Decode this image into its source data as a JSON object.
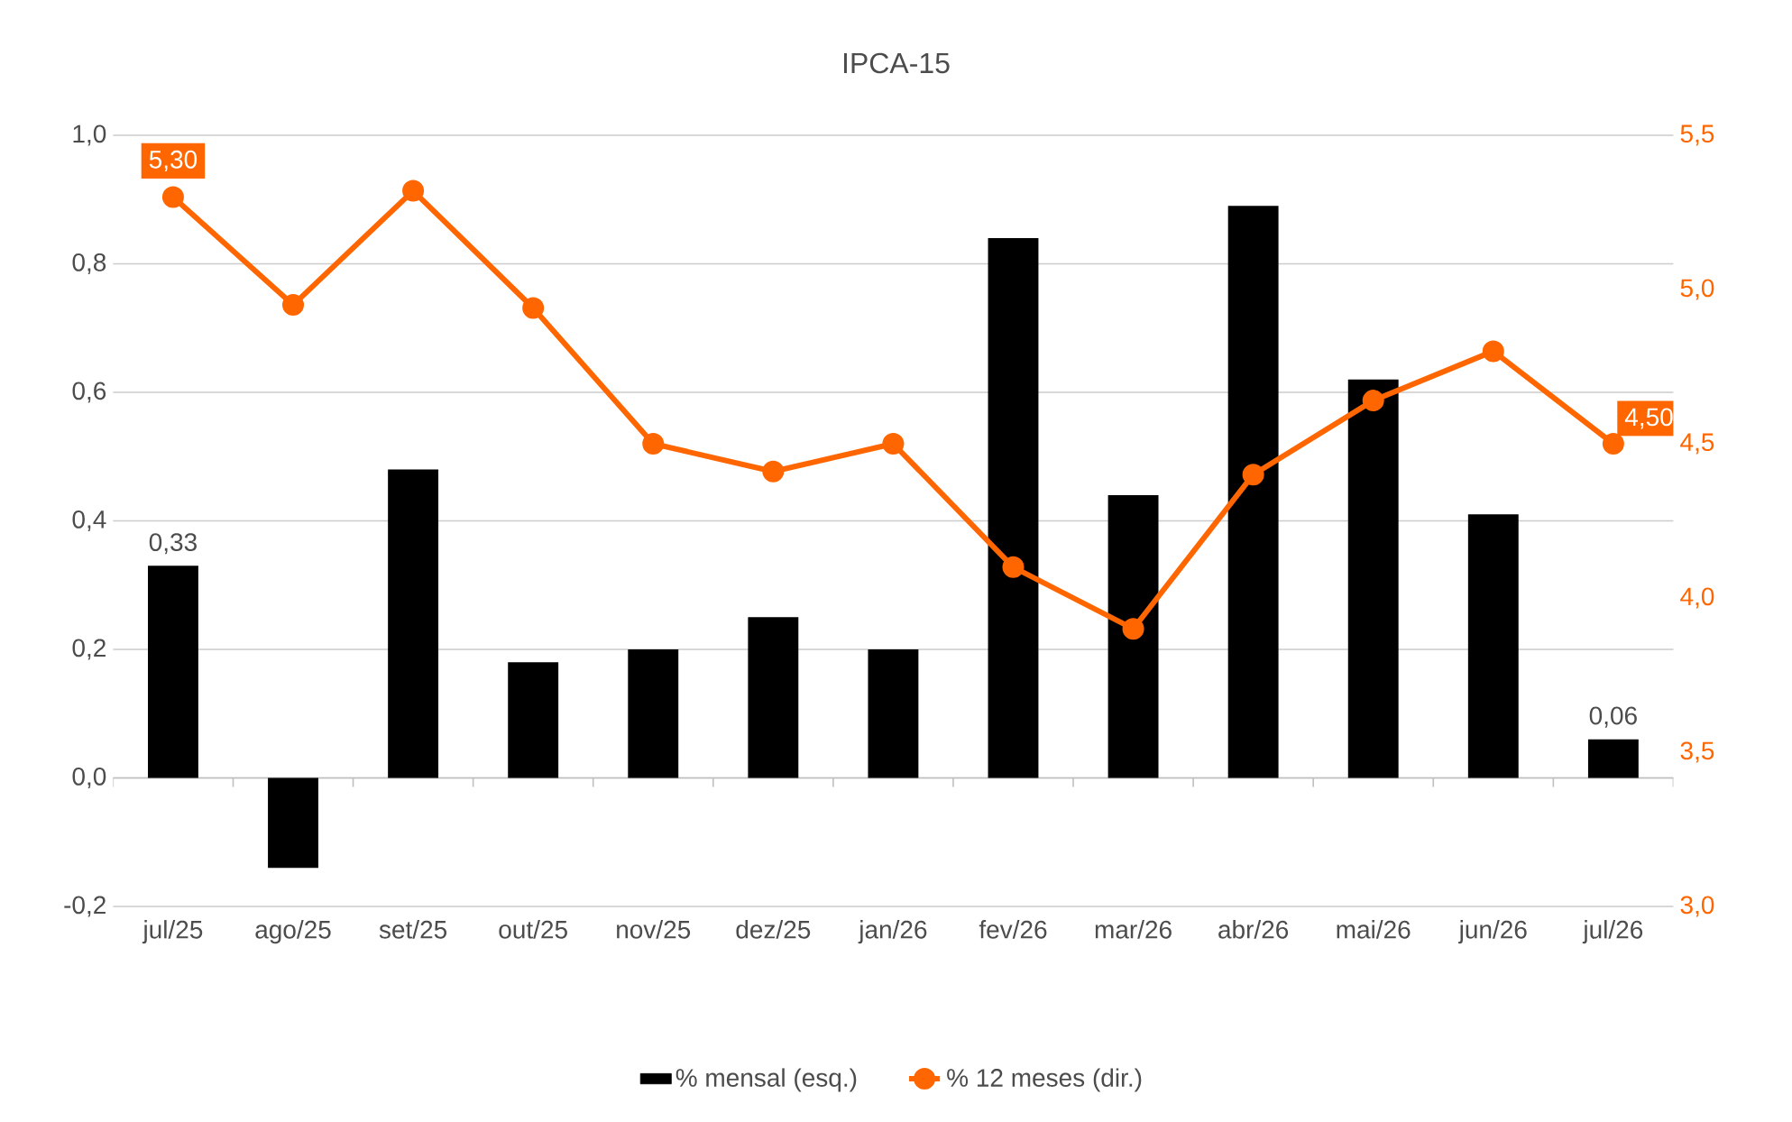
{
  "chart_data": {
    "type": "bar",
    "title": "IPCA-15",
    "categories": [
      "jul/25",
      "ago/25",
      "set/25",
      "out/25",
      "nov/25",
      "dez/25",
      "jan/26",
      "fev/26",
      "mar/26",
      "abr/26",
      "mai/26",
      "jun/26",
      "jul/26"
    ],
    "series": [
      {
        "name": "% mensal (esq.)",
        "color": "#000000",
        "values": [
          0.33,
          -0.14,
          0.48,
          0.18,
          0.2,
          0.25,
          0.2,
          0.84,
          0.44,
          0.89,
          0.62,
          0.41,
          0.06
        ],
        "value_labels": [
          "0,33",
          null,
          null,
          null,
          null,
          null,
          null,
          null,
          null,
          null,
          null,
          null,
          "0,06"
        ]
      },
      {
        "name": "% 12 meses (dir.)",
        "type": "line",
        "axis": "y2",
        "color": "#ff6600",
        "values": [
          5.3,
          4.95,
          5.32,
          4.94,
          4.5,
          4.41,
          4.5,
          4.1,
          3.9,
          4.4,
          4.64,
          4.8,
          4.5
        ],
        "value_labels": [
          "5,30",
          null,
          null,
          null,
          null,
          null,
          null,
          null,
          null,
          null,
          null,
          null,
          "4,50"
        ]
      }
    ],
    "ylim": [
      -0.2,
      1.0
    ],
    "yticks": [
      {
        "value": -0.2,
        "label": "-0,2"
      },
      {
        "value": 0.0,
        "label": "0,0"
      },
      {
        "value": 0.2,
        "label": "0,2"
      },
      {
        "value": 0.4,
        "label": "0,4"
      },
      {
        "value": 0.6,
        "label": "0,6"
      },
      {
        "value": 0.8,
        "label": "0,8"
      },
      {
        "value": 1.0,
        "label": "1,0"
      }
    ],
    "y2lim": [
      3.0,
      5.5
    ],
    "y2ticks": [
      {
        "value": 3.0,
        "label": "3,0"
      },
      {
        "value": 3.5,
        "label": "3,5"
      },
      {
        "value": 4.0,
        "label": "4,0"
      },
      {
        "value": 4.5,
        "label": "4,5"
      },
      {
        "value": 5.0,
        "label": "5,0"
      },
      {
        "value": 5.5,
        "label": "5,5"
      }
    ],
    "grid": "y",
    "legend": "bottom",
    "marker": "circle",
    "line_style": "solid"
  }
}
